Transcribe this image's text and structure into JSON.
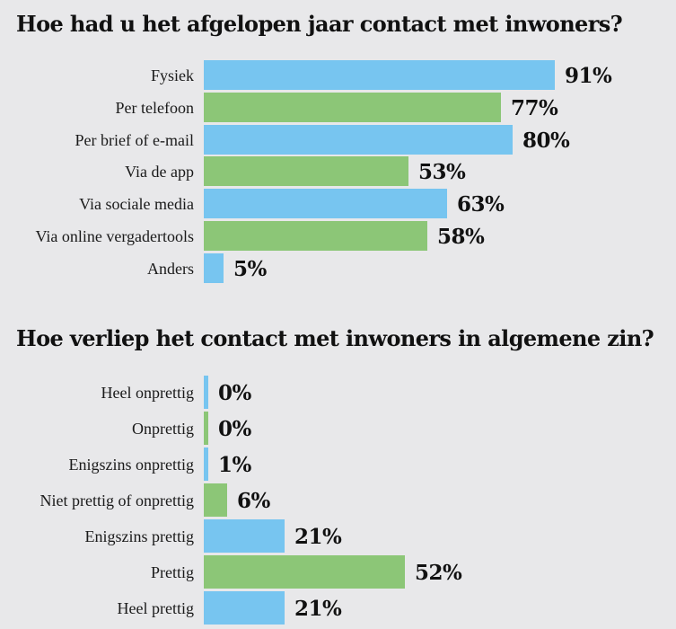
{
  "chart_data": [
    {
      "type": "bar",
      "orientation": "horizontal",
      "title": "Hoe had u het afgelopen jaar contact met inwoners?",
      "categories": [
        "Fysiek",
        "Per telefoon",
        "Per brief of e-mail",
        "Via de app",
        "Via sociale media",
        "Via online vergadertools",
        "Anders"
      ],
      "values": [
        91,
        77,
        80,
        53,
        63,
        58,
        5
      ],
      "value_labels": [
        "91%",
        "77%",
        "80%",
        "53%",
        "63%",
        "58%",
        "5%"
      ],
      "unit": "%",
      "xlim": [
        0,
        100
      ],
      "grid": false,
      "colors": [
        "#77c5f0",
        "#8cc677"
      ]
    },
    {
      "type": "bar",
      "orientation": "horizontal",
      "title": "Hoe verliep het contact met inwoners in algemene zin?",
      "categories": [
        "Heel onprettig",
        "Onprettig",
        "Enigszins onprettig",
        "Niet prettig of onprettig",
        "Enigszins prettig",
        "Prettig",
        "Heel prettig"
      ],
      "values": [
        0,
        0,
        1,
        6,
        21,
        52,
        21
      ],
      "value_labels": [
        "0%",
        "0%",
        "1%",
        "6%",
        "21%",
        "52%",
        "21%"
      ],
      "unit": "%",
      "xlim": [
        0,
        100
      ],
      "grid": false,
      "colors": [
        "#77c5f0",
        "#8cc677"
      ]
    }
  ]
}
